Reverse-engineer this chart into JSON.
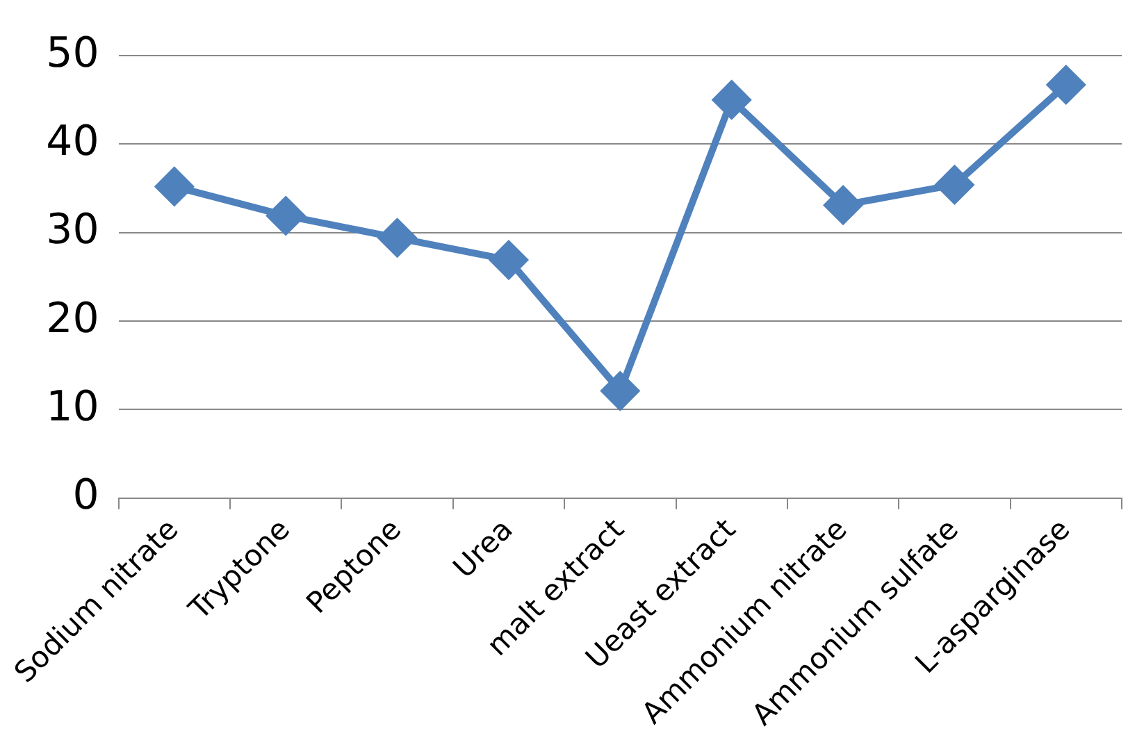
{
  "chart_data": {
    "type": "line",
    "categories": [
      "Sodium nitrate",
      "Tryptone",
      "Peptone",
      "Urea",
      "malt extract",
      "Ueast extract",
      "Ammonium nitrate",
      "Ammonium sulfate",
      "L-asparginase"
    ],
    "series": [
      {
        "color": "#4f81bd",
        "values": [
          35.2,
          31.9,
          29.4,
          26.9,
          12.1,
          45,
          33.1,
          35.4,
          46.7
        ]
      }
    ],
    "ylim": [
      0,
      50
    ],
    "yticks": [
      0,
      10,
      20,
      30,
      40,
      50
    ],
    "grid": "y",
    "legend": false,
    "marker": "diamond",
    "line_style": "solid"
  }
}
